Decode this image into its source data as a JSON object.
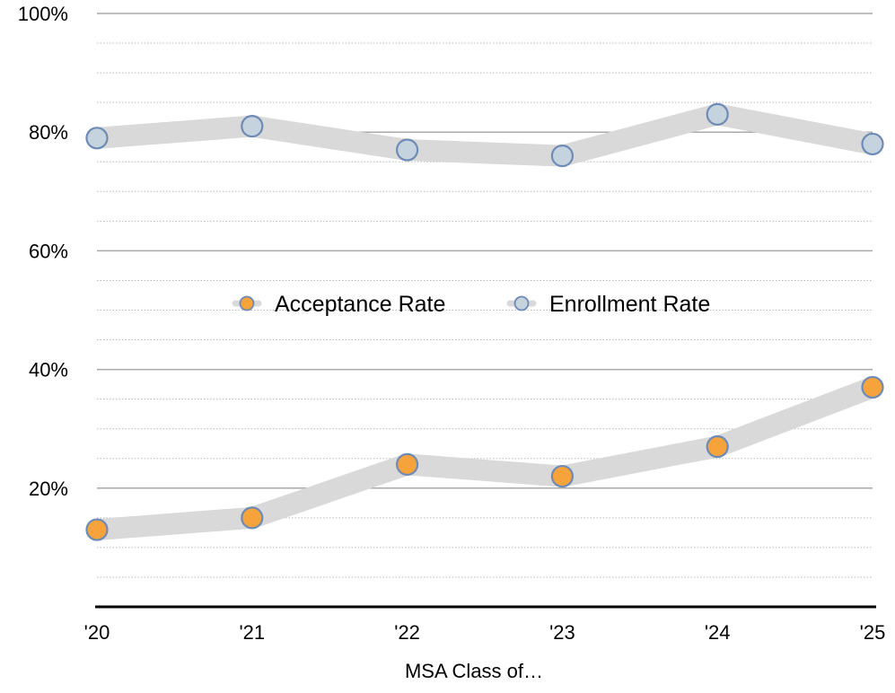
{
  "chart_data": {
    "type": "line",
    "title": "",
    "xlabel": "MSA Class of…",
    "ylabel": "",
    "categories": [
      "'20",
      "'21",
      "'22",
      "'23",
      "'24",
      "'25"
    ],
    "ylim": [
      0,
      100
    ],
    "y_ticks": [
      {
        "value": 20,
        "label": "20%"
      },
      {
        "value": 40,
        "label": "40%"
      },
      {
        "value": 60,
        "label": "60%"
      },
      {
        "value": 80,
        "label": "80%"
      },
      {
        "value": 100,
        "label": "100%"
      }
    ],
    "minor_gridlines": true,
    "grid": true,
    "legend_position": "center",
    "series": [
      {
        "name": "Acceptance Rate",
        "values": [
          13,
          15,
          24,
          22,
          27,
          37
        ],
        "marker_color": "#F7A33B",
        "marker_edge": "#6E8BB5",
        "band_color": "#D9D9D9"
      },
      {
        "name": "Enrollment Rate",
        "values": [
          79,
          81,
          77,
          76,
          83,
          78
        ],
        "marker_color": "#C5D3DE",
        "marker_edge": "#6E8BB5",
        "band_color": "#D9D9D9"
      }
    ]
  }
}
